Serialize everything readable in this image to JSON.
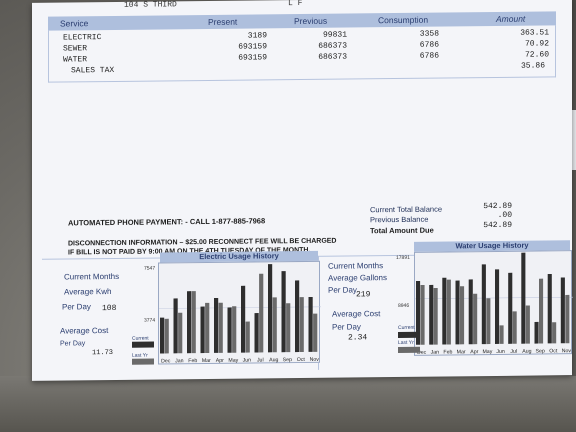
{
  "header_fragment": {
    "left": "104 S THIRD",
    "right": "L F"
  },
  "table": {
    "columns": [
      "Service",
      "Present",
      "Previous",
      "Consumption",
      "Amount"
    ],
    "rows": [
      {
        "service": "ELECTRIC",
        "present": "3189",
        "previous": "99831",
        "consumption": "3358",
        "amount": "363.51"
      },
      {
        "service": "SEWER",
        "present": "693159",
        "previous": "686373",
        "consumption": "6786",
        "amount": "70.92"
      },
      {
        "service": "WATER",
        "present": "693159",
        "previous": "686373",
        "consumption": "6786",
        "amount": "72.60"
      },
      {
        "service": "SALES TAX",
        "present": "",
        "previous": "",
        "consumption": "",
        "amount": "35.86"
      }
    ]
  },
  "payment": {
    "phone_line": "AUTOMATED PHONE PAYMENT: - CALL 1-877-885-7968",
    "disconnect_line1": "DISCONNECTION INFORMATION – $25.00 RECONNECT FEE WILL BE CHARGED",
    "disconnect_line2": "IF BILL IS NOT PAID BY 9:00 AM ON THE 4TH TUESDAY OF THE MONTH."
  },
  "balances": {
    "current_label": "Current Total Balance",
    "current_value": "542.89",
    "previous_label": "Previous Balance",
    "previous_value": ".00",
    "due_label": "Total Amount Due",
    "due_value": "542.89"
  },
  "electric_panel": {
    "months_label": "Current Months",
    "avg_label_1": "Average Kwh",
    "avg_label_2": "Per Day",
    "avg_value": "108",
    "cost_label_1": "Average Cost",
    "cost_label_2": "Per Day",
    "cost_value": "11.73"
  },
  "water_panel": {
    "months_label": "Current Months",
    "avg_label_1": "Average Gallons",
    "avg_label_2": "Per Day",
    "avg_value": "219",
    "cost_label_1": "Average Cost",
    "cost_label_2": "Per Day",
    "cost_value": "2.34"
  },
  "colors": {
    "header_band": "#aebfdd",
    "label_text": "#2b3e70",
    "bar_current": "#2e2e2e",
    "bar_last": "#6a6a6a"
  },
  "chart_data": [
    {
      "type": "bar",
      "title": "Electric Usage History",
      "categories": [
        "Dec",
        "Jan",
        "Feb",
        "Mar",
        "Apr",
        "May",
        "Jun",
        "Jul",
        "Aug",
        "Sep",
        "Oct",
        "Nov"
      ],
      "y_ticks": [
        "7547",
        "3774"
      ],
      "ylim": [
        0,
        7547
      ],
      "series": [
        {
          "name": "Current",
          "values": [
            3000,
            4600,
            5200,
            3900,
            4600,
            3800,
            5600,
            3300,
            7400,
            6800,
            6000,
            4600
          ]
        },
        {
          "name": "Last Yr",
          "values": [
            2900,
            3400,
            5200,
            4200,
            4200,
            3900,
            2600,
            6600,
            4600,
            4100,
            4600,
            3200
          ]
        }
      ],
      "legend": {
        "current": "Current",
        "last": "Last Yr"
      }
    },
    {
      "type": "bar",
      "title": "Water Usage History",
      "categories": [
        "Dec",
        "Jan",
        "Feb",
        "Mar",
        "Apr",
        "May",
        "Jun",
        "Jul",
        "Aug",
        "Sep",
        "Oct",
        "Nov"
      ],
      "y_ticks": [
        "17891",
        "8946"
      ],
      "ylim": [
        0,
        17891
      ],
      "series": [
        {
          "name": "Current",
          "values": [
            12400,
            11600,
            13000,
            12400,
            12600,
            15500,
            14500,
            13800,
            17700,
            4200,
            13500,
            12800
          ]
        },
        {
          "name": "Last Yr",
          "values": [
            11600,
            11000,
            12600,
            11300,
            9800,
            8900,
            3600,
            6300,
            7400,
            12600,
            4100,
            9400
          ]
        }
      ],
      "legend": {
        "current": "Current",
        "last": "Last Yr"
      }
    }
  ]
}
